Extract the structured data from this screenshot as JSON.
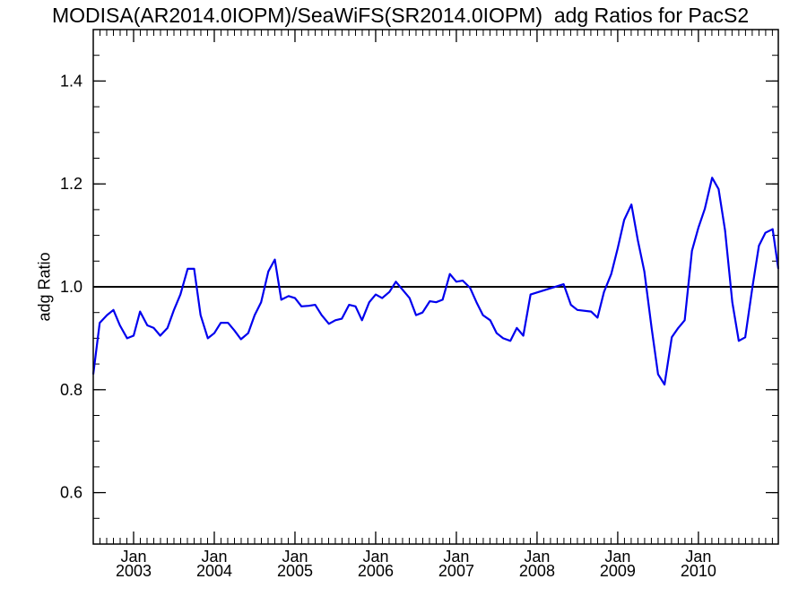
{
  "chart_data": {
    "type": "line",
    "title": "MODISA(AR2014.0IOPM)/SeaWiFS(SR2014.0IOPM)  adg Ratios for PacS2",
    "xlabel": "",
    "ylabel": "adg Ratio",
    "ylim": [
      0.5,
      1.5
    ],
    "xlim": [
      2002.5,
      2010.99
    ],
    "yticks": [
      0.6,
      0.8,
      1.0,
      1.2,
      1.4
    ],
    "ytick_labels": [
      "0.6",
      "0.8",
      "1.0",
      "1.2",
      "1.4"
    ],
    "xticks": [
      {
        "x": 2003.0,
        "month": "Jan",
        "year": "2003"
      },
      {
        "x": 2004.0,
        "month": "Jan",
        "year": "2004"
      },
      {
        "x": 2005.0,
        "month": "Jan",
        "year": "2005"
      },
      {
        "x": 2006.0,
        "month": "Jan",
        "year": "2006"
      },
      {
        "x": 2007.0,
        "month": "Jan",
        "year": "2007"
      },
      {
        "x": 2008.0,
        "month": "Jan",
        "year": "2008"
      },
      {
        "x": 2009.0,
        "month": "Jan",
        "year": "2009"
      },
      {
        "x": 2010.0,
        "month": "Jan",
        "year": "2010"
      }
    ],
    "reference_line": {
      "y": 1.0,
      "color": "#000000"
    },
    "series": [
      {
        "color": "#0000ee",
        "points": [
          [
            2002.5,
            0.83
          ],
          [
            2002.58,
            0.93
          ],
          [
            2002.67,
            0.945
          ],
          [
            2002.75,
            0.955
          ],
          [
            2002.83,
            0.925
          ],
          [
            2002.92,
            0.9
          ],
          [
            2003.0,
            0.905
          ],
          [
            2003.08,
            0.952
          ],
          [
            2003.17,
            0.925
          ],
          [
            2003.25,
            0.92
          ],
          [
            2003.33,
            0.905
          ],
          [
            2003.42,
            0.92
          ],
          [
            2003.5,
            0.955
          ],
          [
            2003.58,
            0.985
          ],
          [
            2003.67,
            1.035
          ],
          [
            2003.75,
            1.035
          ],
          [
            2003.83,
            0.945
          ],
          [
            2003.92,
            0.9
          ],
          [
            2004.0,
            0.91
          ],
          [
            2004.08,
            0.93
          ],
          [
            2004.17,
            0.93
          ],
          [
            2004.25,
            0.915
          ],
          [
            2004.33,
            0.898
          ],
          [
            2004.42,
            0.91
          ],
          [
            2004.5,
            0.945
          ],
          [
            2004.58,
            0.97
          ],
          [
            2004.67,
            1.03
          ],
          [
            2004.75,
            1.053
          ],
          [
            2004.83,
            0.975
          ],
          [
            2004.92,
            0.982
          ],
          [
            2005.0,
            0.978
          ],
          [
            2005.08,
            0.962
          ],
          [
            2005.17,
            0.963
          ],
          [
            2005.25,
            0.965
          ],
          [
            2005.33,
            0.945
          ],
          [
            2005.42,
            0.928
          ],
          [
            2005.5,
            0.935
          ],
          [
            2005.58,
            0.938
          ],
          [
            2005.67,
            0.965
          ],
          [
            2005.75,
            0.962
          ],
          [
            2005.83,
            0.935
          ],
          [
            2005.92,
            0.97
          ],
          [
            2006.0,
            0.985
          ],
          [
            2006.08,
            0.978
          ],
          [
            2006.17,
            0.99
          ],
          [
            2006.25,
            1.01
          ],
          [
            2006.33,
            0.995
          ],
          [
            2006.42,
            0.978
          ],
          [
            2006.5,
            0.945
          ],
          [
            2006.58,
            0.95
          ],
          [
            2006.67,
            0.972
          ],
          [
            2006.75,
            0.97
          ],
          [
            2006.83,
            0.975
          ],
          [
            2006.92,
            1.025
          ],
          [
            2007.0,
            1.01
          ],
          [
            2007.08,
            1.012
          ],
          [
            2007.17,
            0.998
          ],
          [
            2007.25,
            0.97
          ],
          [
            2007.33,
            0.945
          ],
          [
            2007.42,
            0.935
          ],
          [
            2007.5,
            0.91
          ],
          [
            2007.58,
            0.9
          ],
          [
            2007.67,
            0.895
          ],
          [
            2007.75,
            0.92
          ],
          [
            2007.83,
            0.905
          ],
          [
            2007.92,
            0.985
          ],
          [
            2008.33,
            1.005
          ],
          [
            2008.42,
            0.965
          ],
          [
            2008.5,
            0.955
          ],
          [
            2008.67,
            0.952
          ],
          [
            2008.75,
            0.94
          ],
          [
            2008.83,
            0.99
          ],
          [
            2008.92,
            1.025
          ],
          [
            2009.0,
            1.075
          ],
          [
            2009.08,
            1.13
          ],
          [
            2009.17,
            1.16
          ],
          [
            2009.25,
            1.09
          ],
          [
            2009.33,
            1.03
          ],
          [
            2009.42,
            0.92
          ],
          [
            2009.5,
            0.83
          ],
          [
            2009.58,
            0.81
          ],
          [
            2009.67,
            0.902
          ],
          [
            2009.75,
            0.92
          ],
          [
            2009.83,
            0.935
          ],
          [
            2009.92,
            1.07
          ],
          [
            2010.0,
            1.115
          ],
          [
            2010.08,
            1.152
          ],
          [
            2010.17,
            1.212
          ],
          [
            2010.25,
            1.19
          ],
          [
            2010.33,
            1.11
          ],
          [
            2010.42,
            0.97
          ],
          [
            2010.5,
            0.895
          ],
          [
            2010.58,
            0.902
          ],
          [
            2010.67,
            1.0
          ],
          [
            2010.75,
            1.08
          ],
          [
            2010.83,
            1.105
          ],
          [
            2010.92,
            1.112
          ],
          [
            2010.99,
            1.035
          ]
        ]
      }
    ]
  }
}
